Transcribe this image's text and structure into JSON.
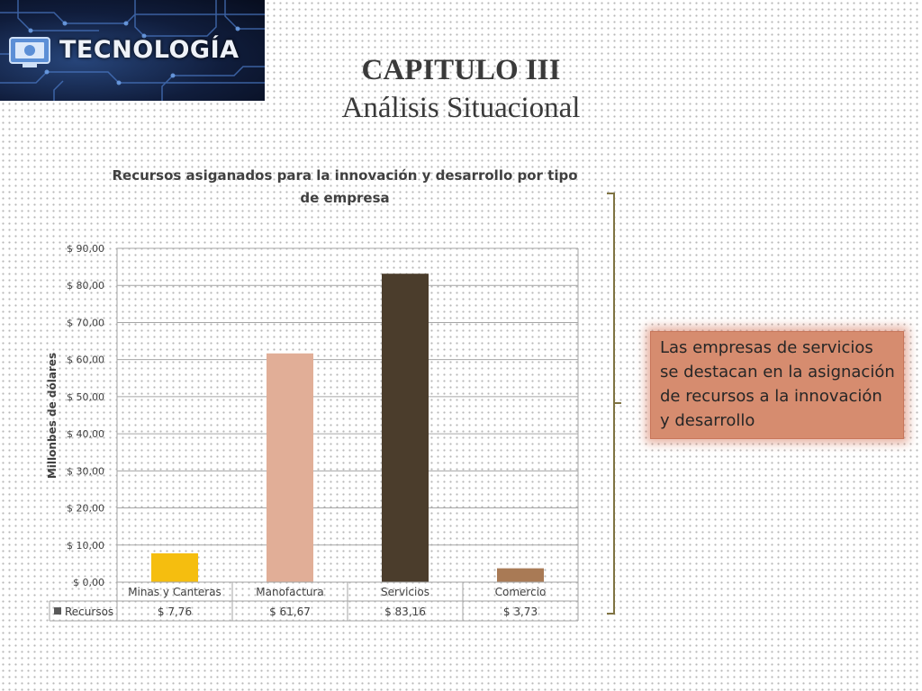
{
  "logo": {
    "text": "TECNOLOGÍA"
  },
  "header": {
    "title": "CAPITULO III",
    "subtitle": "Análisis Situacional"
  },
  "note": {
    "text": "Las empresas de servicios se destacan en la asignación de recursos a la innovación y desarrollo"
  },
  "colors": {
    "bar_colors": [
      "#f5be0f",
      "#e1ae97",
      "#4b3d2c",
      "#a97a55"
    ],
    "bracket": "#7f7342",
    "note_fill": "#d68c6f"
  },
  "chart_data": {
    "type": "bar",
    "title": "Recursos asiganados para la innovación y desarrollo por tipo de empresa",
    "ylabel": "Millonbes de dólares",
    "xlabel": "",
    "categories": [
      "Minas y Canteras",
      "Manofactura",
      "Servicios",
      "Comercio"
    ],
    "series": [
      {
        "name": "Recursos",
        "values": [
          7.76,
          61.67,
          83.16,
          3.73
        ]
      }
    ],
    "value_labels": [
      "$ 7,76",
      "$ 61,67",
      "$ 83,16",
      "$ 3,73"
    ],
    "ylim": [
      0,
      90
    ],
    "yticks": [
      0,
      10,
      20,
      30,
      40,
      50,
      60,
      70,
      80,
      90
    ],
    "ytick_labels": [
      "$ 0,00",
      "$ 10,00",
      "$ 20,00",
      "$ 30,00",
      "$ 40,00",
      "$ 50,00",
      "$ 60,00",
      "$ 70,00",
      "$ 80,00",
      "$ 90,00"
    ],
    "grid": true,
    "legend": "data table below chart"
  }
}
